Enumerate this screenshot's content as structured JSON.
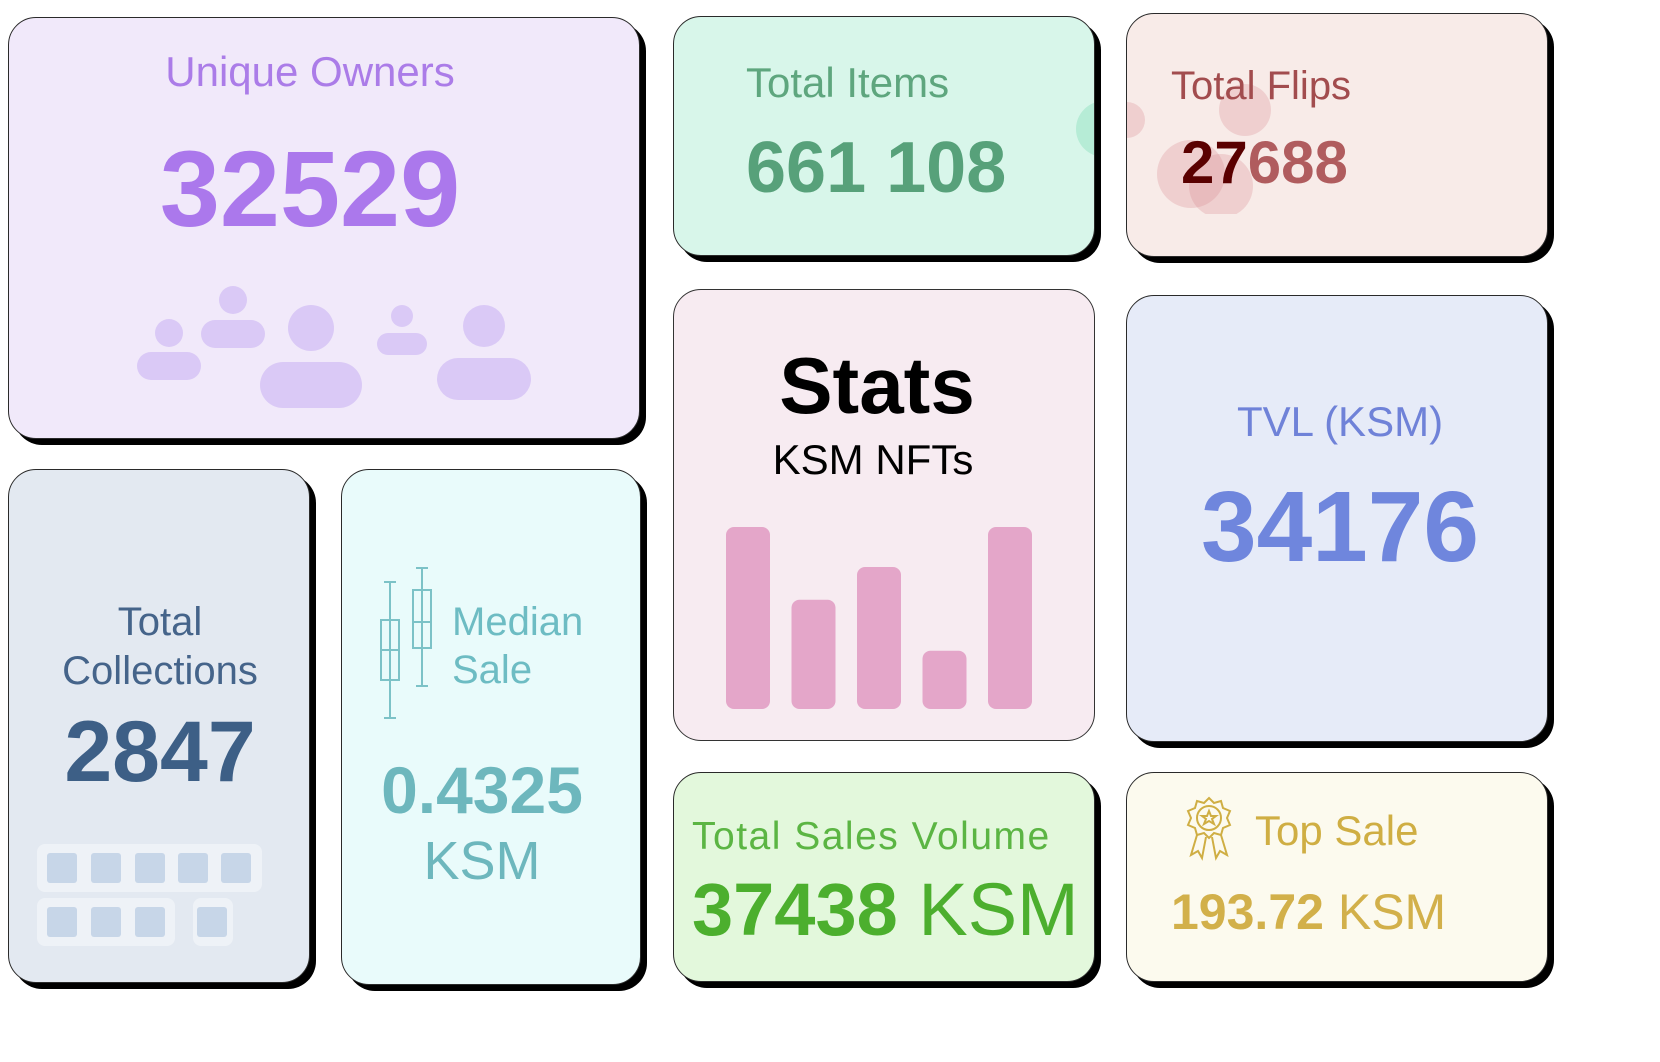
{
  "cards": {
    "unique_owners": {
      "label": "Unique Owners",
      "value": "32529"
    },
    "total_collections": {
      "label_line1": "Total",
      "label_line2": "Collections",
      "value": "2847"
    },
    "median_sale": {
      "label_line1": "Median",
      "label_line2": "Sale",
      "value": "0.4325",
      "unit": "KSM"
    },
    "total_items": {
      "label": "Total Items",
      "value": "661 108"
    },
    "stats": {
      "title": "Stats",
      "subtitle": "KSM NFTs"
    },
    "total_sales_volume": {
      "label": "Total Sales Volume",
      "value": "37438",
      "unit": "KSM"
    },
    "total_flips": {
      "label": "Total Flips",
      "value_dark": "27",
      "value_rest": "688"
    },
    "tvl": {
      "label": "TVL (KSM)",
      "value": "34176"
    },
    "top_sale": {
      "label": "Top Sale",
      "value": "193.72",
      "unit": "KSM"
    }
  },
  "icons": {
    "owners": "people-group-icon",
    "collections": "grid-blocks-icon",
    "median": "candlestick-icon",
    "stats": "bar-chart-icon",
    "top_sale": "award-badge-icon"
  },
  "colors": {
    "owners_accent": "#ab78ec",
    "collections_accent": "#3d5f86",
    "median_accent": "#6db7bd",
    "items_accent": "#57a17a",
    "stats_bars": "#e4a6c9",
    "volume_accent": "#4caf2e",
    "flips_accent": "#b05c5e",
    "tvl_accent": "#6f86dd",
    "top_sale_accent": "#d2b04a"
  },
  "stats_bar_levels": [
    1.0,
    0.6,
    0.78,
    0.32,
    1.0
  ]
}
